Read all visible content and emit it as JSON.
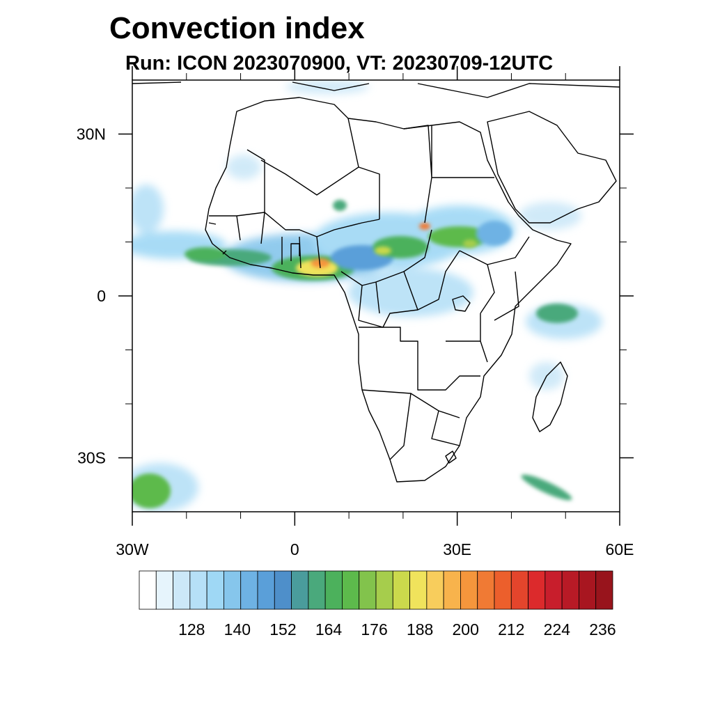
{
  "title": "Convection index",
  "subtitle": "Run: ICON 2023070900,  VT: 20230709-12UTC",
  "map": {
    "lon_range": [
      -30,
      60
    ],
    "lat_range": [
      -40,
      40
    ],
    "x_ticks": [
      {
        "lon": -30,
        "label": "30W"
      },
      {
        "lon": 0,
        "label": "0"
      },
      {
        "lon": 30,
        "label": "30E"
      },
      {
        "lon": 60,
        "label": "60E"
      }
    ],
    "y_ticks": [
      {
        "lat": 30,
        "label": "30N"
      },
      {
        "lat": 0,
        "label": "0"
      },
      {
        "lat": -30,
        "label": "30S"
      }
    ],
    "minor_lon": [
      -20,
      -10,
      10,
      20,
      40,
      50
    ],
    "minor_lat": [
      20,
      10,
      -10,
      -20
    ]
  },
  "colorbar": {
    "colors": [
      "#ffffff",
      "#e6f4fc",
      "#cce8f8",
      "#b6e0f7",
      "#9fd8f5",
      "#86c6ec",
      "#6eb2e4",
      "#5a9fd9",
      "#4e8fca",
      "#4a9c9c",
      "#4aa97c",
      "#4cb15c",
      "#5dba4c",
      "#82c34c",
      "#a6cd4c",
      "#cbd94c",
      "#f0e35c",
      "#f8cd5c",
      "#f8b34c",
      "#f5963c",
      "#f07a34",
      "#ec5f2c",
      "#e4452c",
      "#dc2a2c",
      "#c81e2c",
      "#b81a26",
      "#a81620",
      "#98141c"
    ],
    "labels": [
      "128",
      "140",
      "152",
      "164",
      "176",
      "188",
      "200",
      "212",
      "224",
      "236"
    ]
  },
  "chart_data": {
    "type": "heatmap",
    "title": "Convection index",
    "subtitle": "Run: ICON 2023070900,  VT: 20230709-12UTC",
    "x_range": [
      -30,
      60
    ],
    "y_range": [
      -40,
      40
    ],
    "colorbar_ticks": [
      128,
      140,
      152,
      164,
      176,
      188,
      200,
      212,
      224,
      236
    ],
    "regions": [
      {
        "lon": 4,
        "lat": 9,
        "value": 200
      },
      {
        "lon": 2,
        "lat": 5,
        "value": 188
      },
      {
        "lon": 22,
        "lat": 8,
        "value": 176
      },
      {
        "lon": 30,
        "lat": 12,
        "value": 170
      },
      {
        "lon": -12,
        "lat": 8,
        "value": 164
      },
      {
        "lon": 48,
        "lat": -4,
        "value": 164
      },
      {
        "lon": -25,
        "lat": -36,
        "value": 164
      },
      {
        "lon": 44,
        "lat": -34,
        "value": 152
      }
    ]
  }
}
